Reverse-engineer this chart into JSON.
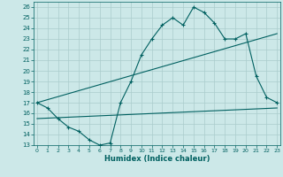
{
  "title": "",
  "xlabel": "Humidex (Indice chaleur)",
  "bg_color": "#cce8e8",
  "line_color": "#006060",
  "grid_color": "#aacccc",
  "curve1_x": [
    0,
    1,
    2,
    3,
    4,
    5,
    6,
    7,
    8,
    9,
    10,
    11,
    12,
    13,
    14,
    15,
    16,
    17,
    18,
    19,
    20,
    21,
    22,
    23
  ],
  "curve1_y": [
    17.0,
    16.5,
    15.5,
    14.7,
    14.3,
    13.5,
    13.0,
    13.2,
    17.0,
    19.0,
    21.5,
    23.0,
    24.3,
    25.0,
    24.3,
    26.0,
    25.5,
    24.5,
    23.0,
    23.0,
    23.5,
    19.5,
    17.5,
    17.0
  ],
  "line1_x": [
    0,
    23
  ],
  "line1_y": [
    17.0,
    23.5
  ],
  "line2_x": [
    0,
    23
  ],
  "line2_y": [
    15.5,
    16.5
  ],
  "xlim": [
    -0.3,
    23.3
  ],
  "ylim": [
    13,
    26.5
  ],
  "yticks": [
    13,
    14,
    15,
    16,
    17,
    18,
    19,
    20,
    21,
    22,
    23,
    24,
    25,
    26
  ],
  "xticks": [
    0,
    1,
    2,
    3,
    4,
    5,
    6,
    7,
    8,
    9,
    10,
    11,
    12,
    13,
    14,
    15,
    16,
    17,
    18,
    19,
    20,
    21,
    22,
    23
  ]
}
